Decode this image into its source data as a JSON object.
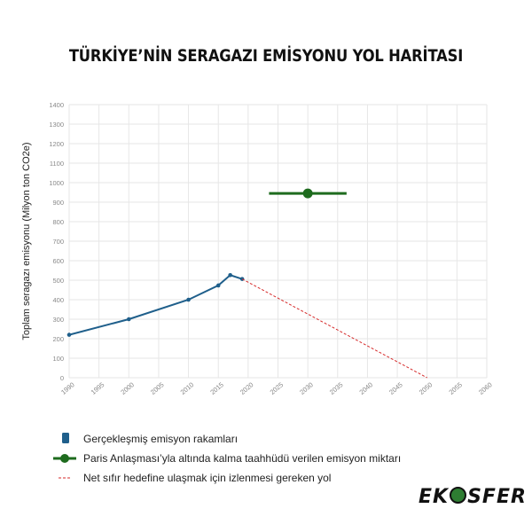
{
  "page_title": "TÜRKİYE’NİN SERAGAZI EMİSYONU YOL HARİTASI",
  "chart_data": {
    "type": "line",
    "title": "TÜRKİYE’NİN SERAGAZI EMİSYONU YOL HARİTASI",
    "ylabel": "Toplam seragazı emisyonu (Milyon ton CO2e)",
    "xlabel": "",
    "xlim": [
      1990,
      2060
    ],
    "ylim": [
      0,
      1400
    ],
    "xticks": [
      1990,
      1995,
      2000,
      2005,
      2010,
      2015,
      2020,
      2025,
      2030,
      2035,
      2040,
      2045,
      2050,
      2055,
      2060
    ],
    "yticks": [
      0,
      100,
      200,
      300,
      400,
      500,
      600,
      700,
      800,
      900,
      1000,
      1100,
      1200,
      1300,
      1400
    ],
    "grid": true,
    "series": [
      {
        "name": "Gerçekleşmiş emisyon rakamları",
        "color": "#1f5f8b",
        "x": [
          1990,
          2000,
          2010,
          2015,
          2017,
          2019
        ],
        "y": [
          220,
          300,
          400,
          473,
          526,
          506
        ]
      },
      {
        "name": "Paris Anlaşması’yla altında kalma taahhüdü verilen emisyon miktarı",
        "color": "#1e6b1e",
        "x": [
          2030
        ],
        "y": [
          945
        ],
        "error_x": [
          2023.5,
          2036.5
        ]
      },
      {
        "name": "Net sıfır hedefine ulaşmak için izlenmesi gereken yol",
        "color": "#d62a2a",
        "style": "dashed",
        "x": [
          2019,
          2050
        ],
        "y": [
          506,
          0
        ]
      }
    ],
    "legend_position": "bottom-left"
  },
  "legend": [
    {
      "label": "Gerçekleşmiş emisyon rakamları",
      "symbol": "blue-square"
    },
    {
      "label": "Paris Anlaşması’yla altında kalma taahhüdü verilen emisyon miktarı",
      "symbol": "green-line-dot"
    },
    {
      "label": "Net sıfır hedefine ulaşmak için izlenmesi gereken yol",
      "symbol": "red-dash"
    }
  ],
  "logo": {
    "text": "EKOSFER"
  }
}
